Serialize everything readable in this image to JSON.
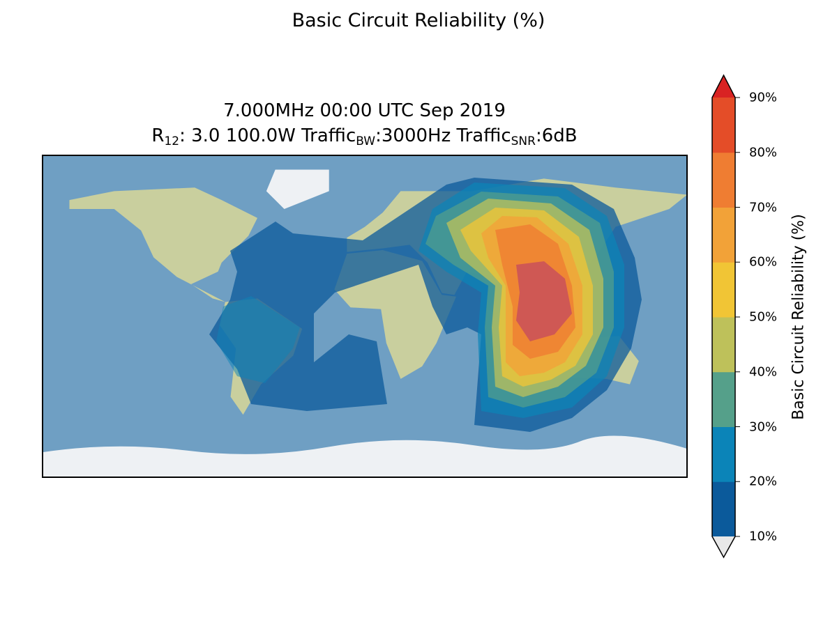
{
  "title": "Basic Circuit Reliability (%)",
  "subtitle": {
    "line1": "7.000MHz 00:00 UTC Sep 2019",
    "line2": {
      "r": "R",
      "r_sub": "12",
      "a": ": 3.0 100.0W Traffic",
      "bw_sub": "BW",
      "b": ":3000Hz Traffic",
      "snr_sub": "SNR",
      "c": ":6dB"
    }
  },
  "chart_data": {
    "type": "contour",
    "title": "Basic Circuit Reliability (%)",
    "frequency": "7.000MHz",
    "time": "00:00 UTC Sep 2019",
    "colorbar": {
      "label": "Basic Circuit Reliability (%)",
      "ticks": [
        "10%",
        "20%",
        "30%",
        "40%",
        "50%",
        "60%",
        "70%",
        "80%",
        "90%"
      ],
      "levels": [
        10,
        20,
        30,
        40,
        50,
        60,
        70,
        80,
        90
      ],
      "extend": "both",
      "colors": [
        "#0b5a9b",
        "#0b84b8",
        "#55a08a",
        "#bec15a",
        "#f1c535",
        "#f2a238",
        "#ef7d32",
        "#e44d28"
      ],
      "over_color": "#d92323",
      "under_color": "#e8e8e8",
      "placement": "right"
    },
    "peak_region": "South-East Asia / Indian Ocean",
    "max_level": 90
  }
}
